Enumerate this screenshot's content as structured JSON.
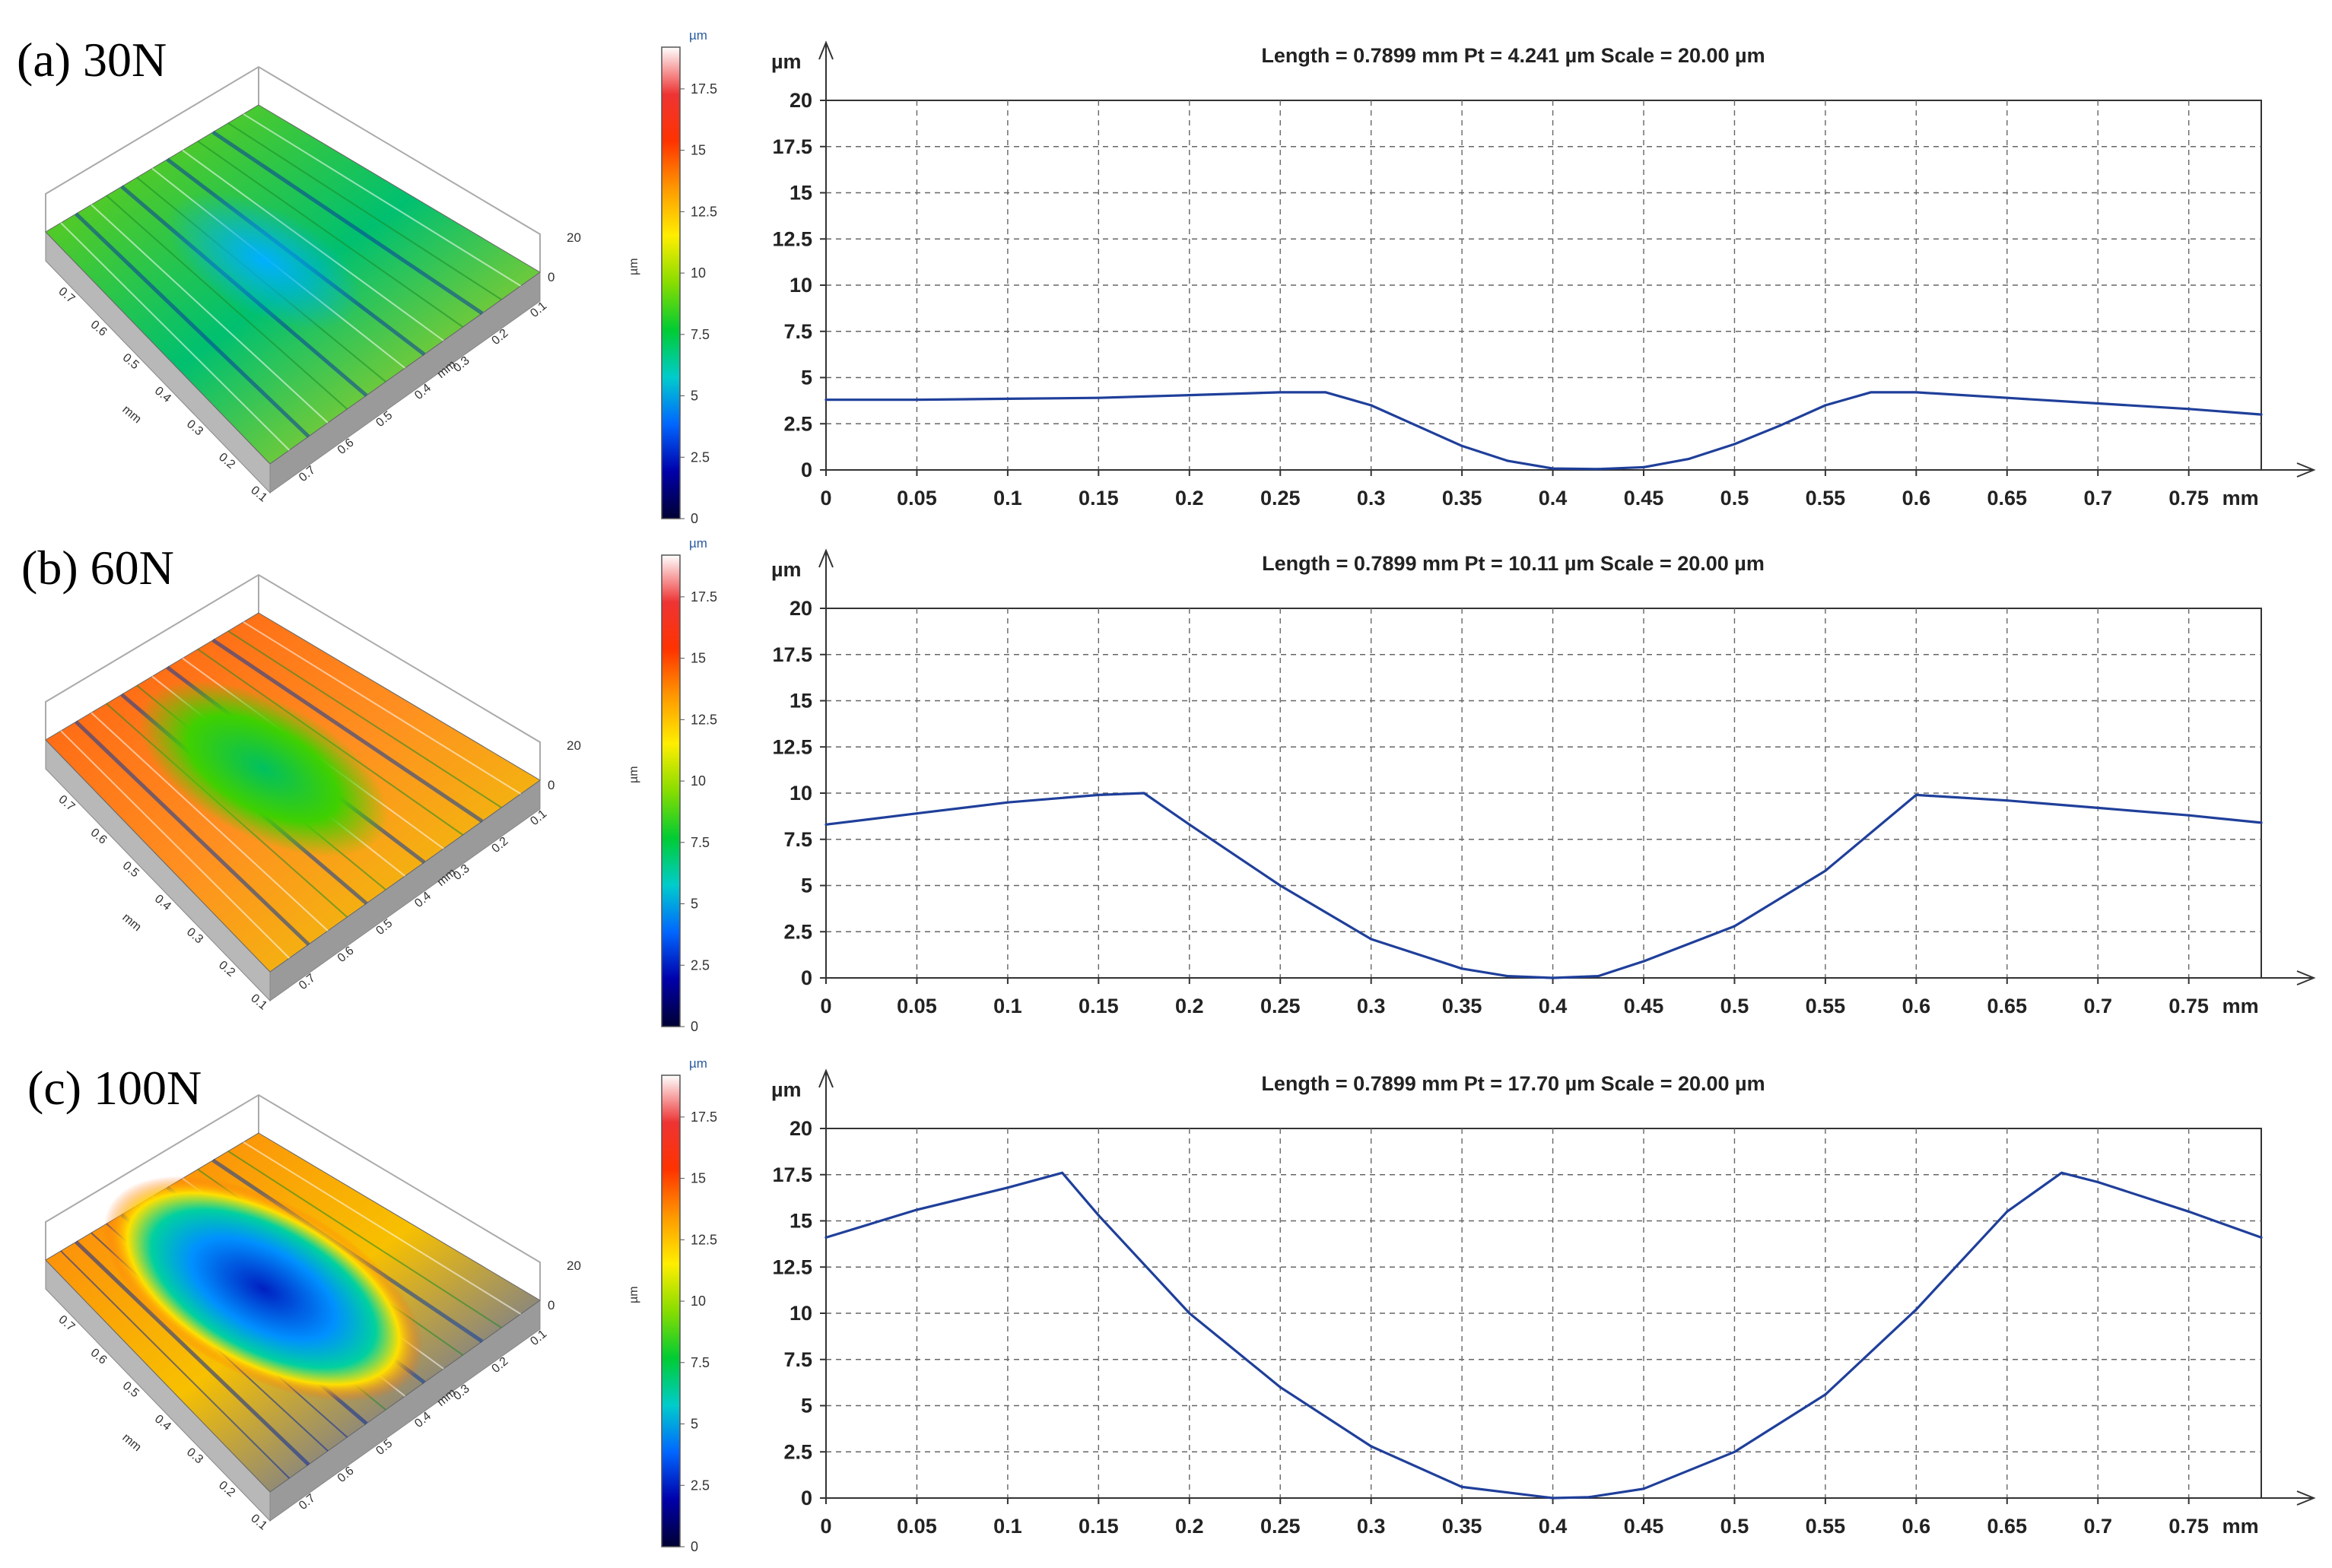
{
  "figure": {
    "colorbar": {
      "unit": "µm",
      "axis_title": "µm",
      "ticks": [
        "0",
        "2.5",
        "5",
        "7.5",
        "10",
        "12.5",
        "15",
        "17.5"
      ],
      "stops": [
        "#000033",
        "#0000aa",
        "#0066ff",
        "#00cccc",
        "#00cc33",
        "#88dd00",
        "#ffee00",
        "#ff9900",
        "#ff3300",
        "#ee3333",
        "#ffffff"
      ]
    },
    "surface_3d": {
      "z_tick_top": "20",
      "z_tick_zero": "0",
      "axis_unit": "mm",
      "ticks_left": [
        "0.7",
        "0.6",
        "0.5",
        "0.4",
        "0.3",
        "0.2",
        "0.1"
      ],
      "ticks_right": [
        "0.7",
        "0.6",
        "0.5",
        "0.4",
        "0.3",
        "0.2",
        "0.1"
      ]
    }
  },
  "panels": [
    {
      "label": "(a) 30N",
      "surface_theme": "low-wear",
      "chart_data": {
        "type": "line",
        "title": "Length = 0.7899 mm  Pt = 4.241 µm  Scale = 20.00 µm",
        "ylabel": "µm",
        "xlabel": "mm",
        "xlim": [
          0,
          0.7899
        ],
        "ylim": [
          0,
          20
        ],
        "xticks": [
          "0",
          "0.05",
          "0.1",
          "0.15",
          "0.2",
          "0.25",
          "0.3",
          "0.35",
          "0.4",
          "0.45",
          "0.5",
          "0.55",
          "0.6",
          "0.65",
          "0.7",
          "0.75"
        ],
        "yticks": [
          "0",
          "2.5",
          "5",
          "7.5",
          "10",
          "12.5",
          "15",
          "17.5",
          "20"
        ],
        "grid": true,
        "series": [
          {
            "name": "profile",
            "x": [
              0,
              0.05,
              0.1,
              0.15,
              0.2,
              0.25,
              0.275,
              0.3,
              0.325,
              0.35,
              0.375,
              0.4,
              0.425,
              0.45,
              0.475,
              0.5,
              0.525,
              0.55,
              0.575,
              0.6,
              0.65,
              0.7,
              0.75,
              0.7899
            ],
            "y": [
              3.8,
              3.8,
              3.85,
              3.9,
              4.05,
              4.2,
              4.2,
              3.5,
              2.4,
              1.3,
              0.5,
              0.08,
              0.05,
              0.15,
              0.6,
              1.4,
              2.4,
              3.5,
              4.2,
              4.2,
              3.9,
              3.6,
              3.3,
              3.0
            ]
          }
        ]
      }
    },
    {
      "label": "(b) 60N",
      "surface_theme": "medium-wear",
      "chart_data": {
        "type": "line",
        "title": "Length = 0.7899 mm  Pt = 10.11 µm  Scale = 20.00 µm",
        "ylabel": "µm",
        "xlabel": "mm",
        "xlim": [
          0,
          0.7899
        ],
        "ylim": [
          0,
          20
        ],
        "xticks": [
          "0",
          "0.05",
          "0.1",
          "0.15",
          "0.2",
          "0.25",
          "0.3",
          "0.35",
          "0.4",
          "0.45",
          "0.5",
          "0.55",
          "0.6",
          "0.65",
          "0.7",
          "0.75"
        ],
        "yticks": [
          "0",
          "2.5",
          "5",
          "7.5",
          "10",
          "12.5",
          "15",
          "17.5",
          "20"
        ],
        "grid": true,
        "series": [
          {
            "name": "profile",
            "x": [
              0,
              0.05,
              0.1,
              0.15,
              0.175,
              0.2,
              0.25,
              0.3,
              0.35,
              0.375,
              0.4,
              0.425,
              0.45,
              0.5,
              0.55,
              0.6,
              0.65,
              0.7,
              0.75,
              0.7899
            ],
            "y": [
              8.3,
              8.9,
              9.5,
              9.9,
              10.0,
              8.3,
              5.0,
              2.1,
              0.5,
              0.1,
              0.0,
              0.1,
              0.9,
              2.8,
              5.8,
              9.9,
              9.6,
              9.2,
              8.8,
              8.4
            ]
          }
        ]
      }
    },
    {
      "label": "(c) 100N",
      "surface_theme": "high-wear",
      "chart_data": {
        "type": "line",
        "title": "Length = 0.7899 mm  Pt = 17.70 µm  Scale = 20.00 µm",
        "ylabel": "µm",
        "xlabel": "mm",
        "xlim": [
          0,
          0.7899
        ],
        "ylim": [
          0,
          20
        ],
        "xticks": [
          "0",
          "0.05",
          "0.1",
          "0.15",
          "0.2",
          "0.25",
          "0.3",
          "0.35",
          "0.4",
          "0.45",
          "0.5",
          "0.55",
          "0.6",
          "0.65",
          "0.7",
          "0.75"
        ],
        "yticks": [
          "0",
          "2.5",
          "5",
          "7.5",
          "10",
          "12.5",
          "15",
          "17.5",
          "20"
        ],
        "grid": true,
        "series": [
          {
            "name": "profile",
            "x": [
              0,
              0.05,
              0.1,
              0.13,
              0.15,
              0.2,
              0.25,
              0.3,
              0.35,
              0.4,
              0.42,
              0.45,
              0.5,
              0.55,
              0.6,
              0.65,
              0.68,
              0.7,
              0.75,
              0.7899
            ],
            "y": [
              14.1,
              15.6,
              16.8,
              17.6,
              15.3,
              10.0,
              6.0,
              2.8,
              0.6,
              0.0,
              0.05,
              0.5,
              2.5,
              5.6,
              10.2,
              15.5,
              17.6,
              17.1,
              15.5,
              14.1
            ]
          }
        ]
      }
    }
  ]
}
